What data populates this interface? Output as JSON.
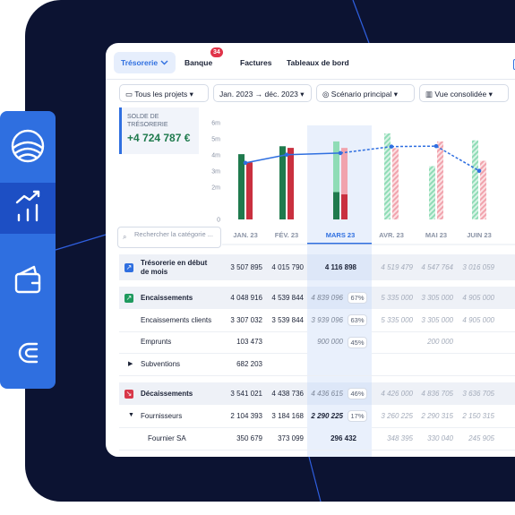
{
  "tabs": [
    {
      "label": "Trésorerie"
    },
    {
      "label": "Banque",
      "badge": "34"
    },
    {
      "label": "Factures"
    },
    {
      "label": "Tableaux de bord"
    }
  ],
  "filters": [
    "Tous les projets",
    "Jan. 2023 → déc. 2023",
    "Scénario principal",
    "Vue consolidée"
  ],
  "balance": {
    "label": "SOLDE DE TRÉSORERIE",
    "value": "+4 724 787 €"
  },
  "search_placeholder": "Rechercher la catégorie ...",
  "chart_data": {
    "type": "bar",
    "categories": [
      "JAN. 23",
      "FÉV. 23",
      "MARS 23",
      "AVR. 23",
      "MAI 23",
      "JUIN 23"
    ],
    "series": [
      {
        "color": "#1f7a4d",
        "values": [
          4048916,
          4539844,
          4839096,
          5335000,
          3305000,
          4905000
        ]
      },
      {
        "color": "#c9303f",
        "values": [
          3541021,
          4438736,
          4436615,
          4426000,
          4836705,
          3636705
        ]
      },
      {
        "type": "line",
        "color": "#2f6fe0",
        "values": [
          3507895,
          4015790,
          4116898,
          4519479,
          4547764,
          3016059
        ]
      }
    ],
    "ylim": [
      0,
      6000000
    ],
    "yticks": [
      {
        "value": 6000000,
        "label": "6m"
      },
      {
        "value": 5000000,
        "label": "5m"
      },
      {
        "value": 4000000,
        "label": "4m"
      },
      {
        "value": 3000000,
        "label": "3m"
      },
      {
        "value": 2000000,
        "label": "2m"
      },
      0
    ]
  },
  "table": {
    "rows": [
      {
        "label": "Trésorerie en début de mois",
        "cells": [
          "3 507 895",
          "4 015 790",
          "4 116 898",
          "4 519 479",
          "4 547 764",
          "3 016 059"
        ]
      },
      {
        "label": "Encaissements",
        "cells": [
          "4 048 916",
          "4 539 844",
          "4 839 096",
          "5 335 000",
          "3 305 000",
          "4 905 000"
        ],
        "percent": "67%"
      },
      {
        "label": "Encaissements clients",
        "cells": [
          "3 307 032",
          "3 539 844",
          "3 939 096",
          "5 335 000",
          "3 305 000",
          "4 905 000"
        ],
        "percent": "63%"
      },
      {
        "label": "Emprunts",
        "cells": [
          "103 473",
          null,
          "900 000",
          null,
          "200 000",
          null
        ],
        "percent": "45%"
      },
      {
        "label": "Subventions",
        "cells": [
          "682 203",
          null,
          null,
          null,
          null,
          null
        ]
      },
      {
        "label": "Décaissements",
        "cells": [
          "3 541 021",
          "4 438 736",
          "4 436 615",
          "4 426 000",
          "4 836 705",
          "3 636 705"
        ],
        "percent": "46%"
      },
      {
        "label": "Fournisseurs",
        "cells": [
          "2 104 393",
          "3 184 168",
          "2 290 225",
          "3 260 225",
          "2 290 315",
          "2 150 315"
        ],
        "percent": "17%"
      },
      {
        "label": "Fournier SA",
        "cells": [
          "350 679",
          "373 099",
          "296 432",
          "348 395",
          "330 040",
          "245 905"
        ]
      }
    ]
  }
}
